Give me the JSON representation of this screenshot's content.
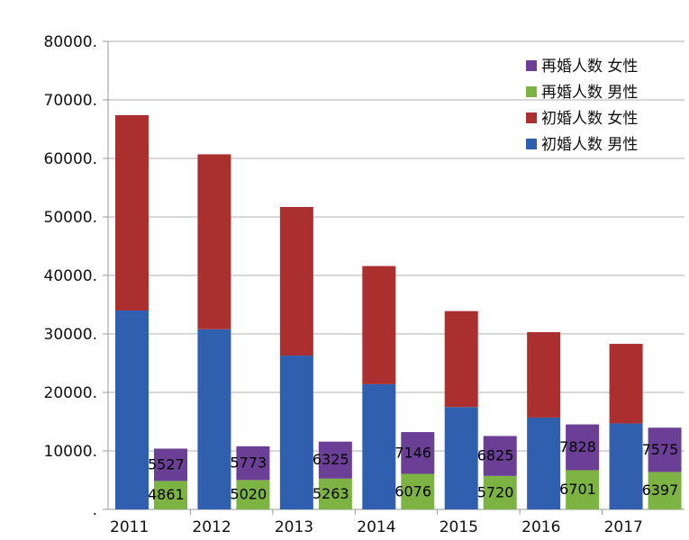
{
  "chart_data": {
    "type": "bar",
    "stacked": true,
    "grouped_pairs": true,
    "categories": [
      "2011",
      "2012",
      "2013",
      "2014",
      "2015",
      "2016",
      "2017"
    ],
    "y_tick_labels": [
      ".",
      "10000.",
      "20000.",
      "30000.",
      "40000.",
      "50000.",
      "60000.",
      "70000.",
      "80000."
    ],
    "ylim": [
      0,
      80000
    ],
    "grid": true,
    "legend_position": "top-right",
    "first_marriage": {
      "male": [
        34000,
        30800,
        26300,
        21400,
        17500,
        15700,
        14700
      ],
      "female": [
        33400,
        29900,
        25400,
        20200,
        16400,
        14600,
        13600
      ]
    },
    "remarriage": {
      "male": [
        4861,
        5020,
        5263,
        6076,
        5720,
        6701,
        6397
      ],
      "female": [
        5527,
        5773,
        6325,
        7146,
        6825,
        7828,
        7575
      ]
    },
    "series": [
      {
        "name": "再婚人数 女性",
        "color": "#6b3f96"
      },
      {
        "name": "再婚人数 男性",
        "color": "#7cb342"
      },
      {
        "name": "初婚人数 女性",
        "color": "#ac2f2f"
      },
      {
        "name": "初婚人数 男性",
        "color": "#2f5fae"
      }
    ]
  }
}
